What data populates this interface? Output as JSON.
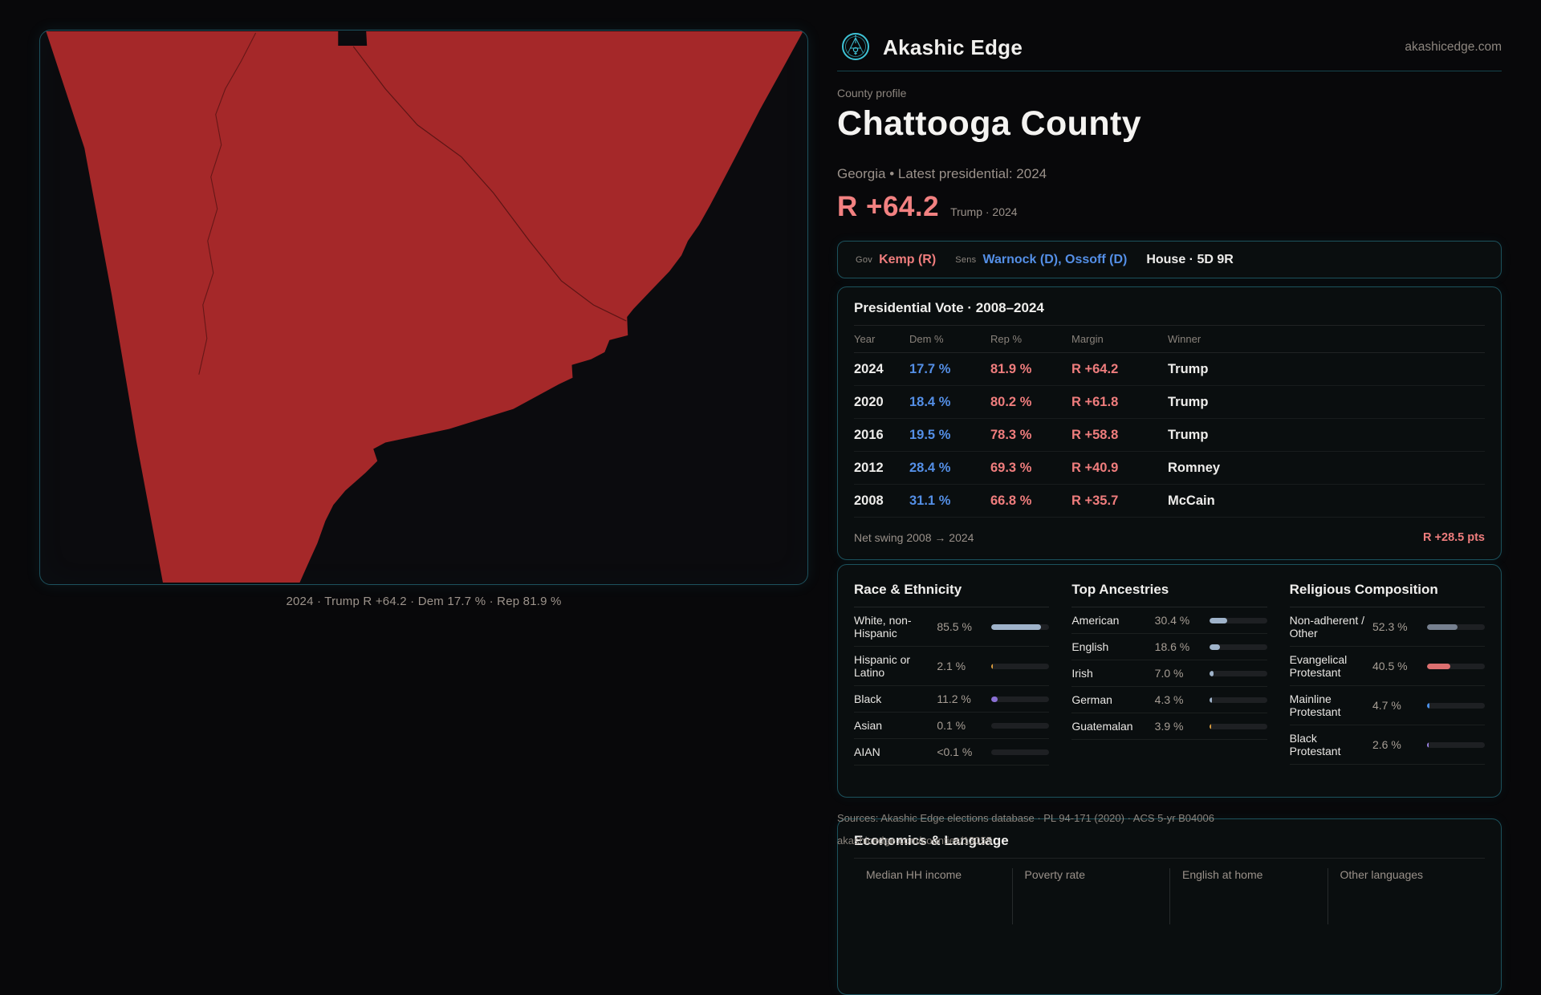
{
  "brand": {
    "name": "Akashic Edge",
    "domain": "akashicedge.com"
  },
  "profile": {
    "kicker": "County profile",
    "title": "Chattooga County",
    "subtitle": "Georgia • Latest presidential: 2024",
    "headline_margin": "R +64.2",
    "headline_context": "Trump · 2024"
  },
  "map": {
    "caption": "2024 · Trump R +64.2 · Dem 17.7 % · Rep 81.9 %",
    "fill_color": "#a52829"
  },
  "officials": {
    "gov_label": "Gov",
    "gov_value": "Kemp (R)",
    "sens_label": "Sens",
    "sens_value": "Warnock (D), Ossoff (D)",
    "house_value": "House · 5D 9R"
  },
  "presidential": {
    "title": "Presidential Vote · 2008–2024",
    "columns": {
      "year": "Year",
      "dem": "Dem %",
      "rep": "Rep %",
      "margin": "Margin",
      "winner": "Winner"
    },
    "rows": [
      {
        "year": "2024",
        "dem": "17.7 %",
        "rep": "81.9 %",
        "margin": "R +64.2",
        "winner": "Trump"
      },
      {
        "year": "2020",
        "dem": "18.4 %",
        "rep": "80.2 %",
        "margin": "R +61.8",
        "winner": "Trump"
      },
      {
        "year": "2016",
        "dem": "19.5 %",
        "rep": "78.3 %",
        "margin": "R +58.8",
        "winner": "Trump"
      },
      {
        "year": "2012",
        "dem": "28.4 %",
        "rep": "69.3 %",
        "margin": "R +40.9",
        "winner": "Romney"
      },
      {
        "year": "2008",
        "dem": "31.1 %",
        "rep": "66.8 %",
        "margin": "R +35.7",
        "winner": "McCain"
      }
    ],
    "net_swing_label": "Net swing 2008 → 2024",
    "net_swing_value": "R +28.5 pts"
  },
  "demographics": {
    "race": {
      "heading": "Race & Ethnicity",
      "rows": [
        {
          "label": "White, non-Hispanic",
          "value": "85.5 %",
          "pct": 85.5,
          "color": "#9fb3ca"
        },
        {
          "label": "Hispanic or Latino",
          "value": "2.1 %",
          "pct": 2.1,
          "color": "#dd9e3e"
        },
        {
          "label": "Black",
          "value": "11.2 %",
          "pct": 11.2,
          "color": "#8a70d4"
        },
        {
          "label": "Asian",
          "value": "0.1 %",
          "pct": 0,
          "color": "#9fb3ca"
        },
        {
          "label": "AIAN",
          "value": "<0.1 %",
          "pct": 0,
          "color": "#9fb3ca"
        }
      ]
    },
    "ancestries": {
      "heading": "Top Ancestries",
      "rows": [
        {
          "label": "American",
          "value": "30.4 %",
          "pct": 30.4,
          "color": "#9fb3ca"
        },
        {
          "label": "English",
          "value": "18.6 %",
          "pct": 18.6,
          "color": "#9fb3ca"
        },
        {
          "label": "Irish",
          "value": "7.0 %",
          "pct": 7.0,
          "color": "#9fb3ca"
        },
        {
          "label": "German",
          "value": "4.3 %",
          "pct": 4.3,
          "color": "#9fb3ca"
        },
        {
          "label": "Guatemalan",
          "value": "3.9 %",
          "pct": 3.9,
          "color": "#dd9e3e"
        }
      ]
    },
    "religion": {
      "heading": "Religious Composition",
      "rows": [
        {
          "label": "Non-adherent / Other",
          "value": "52.3 %",
          "pct": 52.3,
          "color": "#76808f"
        },
        {
          "label": "Evangelical Protestant",
          "value": "40.5 %",
          "pct": 40.5,
          "color": "#dc6f6f"
        },
        {
          "label": "Mainline Protestant",
          "value": "4.7 %",
          "pct": 4.7,
          "color": "#4a8fe8"
        },
        {
          "label": "Black Protestant",
          "value": "2.6 %",
          "pct": 2.6,
          "color": "#9b82e2"
        }
      ]
    }
  },
  "sources": {
    "line1": "Sources: Akashic Edge elections database · PL 94-171 (2020) · ACS 5-yr B04006",
    "line2": "akashicedge.com/counties/13055"
  },
  "economics": {
    "title": "Economics & Language",
    "columns": [
      "Median HH income",
      "Poverty rate",
      "English at home",
      "Other languages"
    ]
  }
}
